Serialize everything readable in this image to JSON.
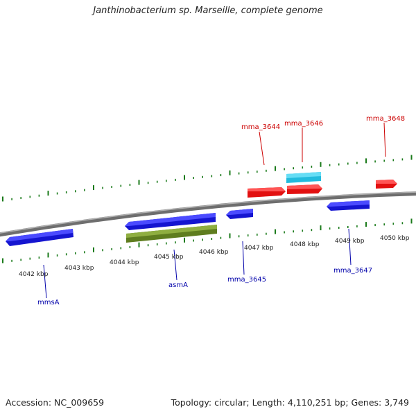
{
  "title": "Janthinobacterium sp. Marseille, complete genome",
  "footer": {
    "accession": "Accession: NC_009659",
    "topology": "Topology: circular; Length: 4,110,251 bp; Genes: 3,749"
  },
  "colors": {
    "backbone": "#8a8a8a",
    "tick": "#1a7a1a",
    "forward_gene": "#ee1111",
    "reverse_gene": "#1111dd",
    "rna_gene": "#33ccee",
    "other_gene": "#6b8e23",
    "forward_label": "#cc0000",
    "reverse_label": "#0000aa"
  },
  "scale_labels": [
    "4042 kbp",
    "4043 kbp",
    "4044 kbp",
    "4045 kbp",
    "4046 kbp",
    "4047 kbp",
    "4048 kbp",
    "4049 kbp",
    "4050 kbp"
  ],
  "gene_labels": {
    "forward": [
      "mma_3644",
      "mma_3646",
      "mma_3648"
    ],
    "reverse": [
      "mmsA",
      "asmA",
      "mma_3645",
      "mma_3647"
    ]
  }
}
